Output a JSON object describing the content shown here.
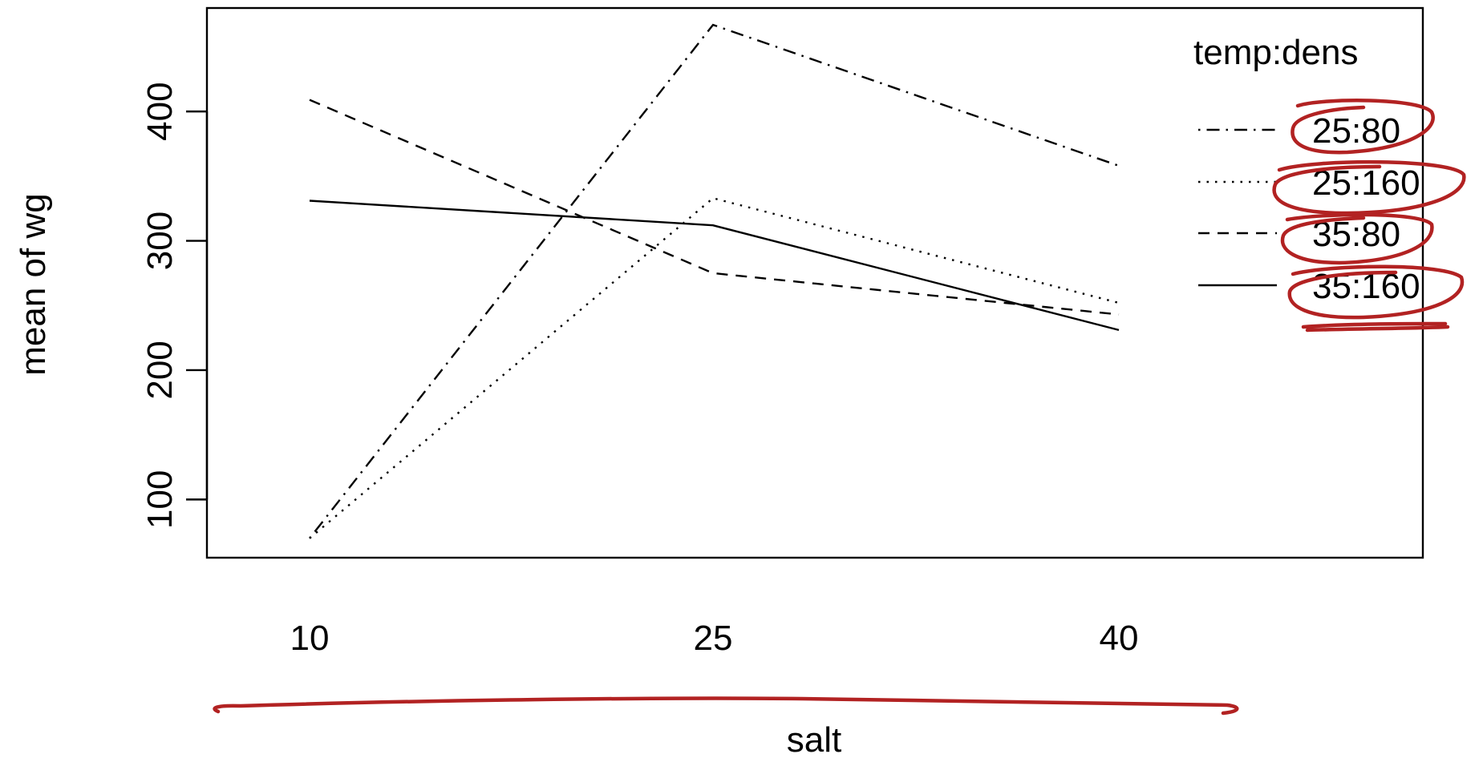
{
  "chart_data": {
    "type": "line",
    "categories": [
      "10",
      "25",
      "40"
    ],
    "xlabel": "salt",
    "ylabel": "mean of  wg",
    "yticks": [
      100,
      200,
      300,
      400
    ],
    "ylim": [
      55,
      480
    ],
    "legend": {
      "title": "temp:dens",
      "position": "top-right"
    },
    "series": [
      {
        "name": "25:80",
        "values": [
          70,
          467,
          358
        ],
        "linestyle": "dotdash"
      },
      {
        "name": "25:160",
        "values": [
          70,
          333,
          252
        ],
        "linestyle": "dotted"
      },
      {
        "name": "35:80",
        "values": [
          409,
          275,
          243
        ],
        "linestyle": "dashed"
      },
      {
        "name": "35:160",
        "values": [
          331,
          312,
          231
        ],
        "linestyle": "solid"
      }
    ],
    "annotation_color": "#b22222"
  }
}
